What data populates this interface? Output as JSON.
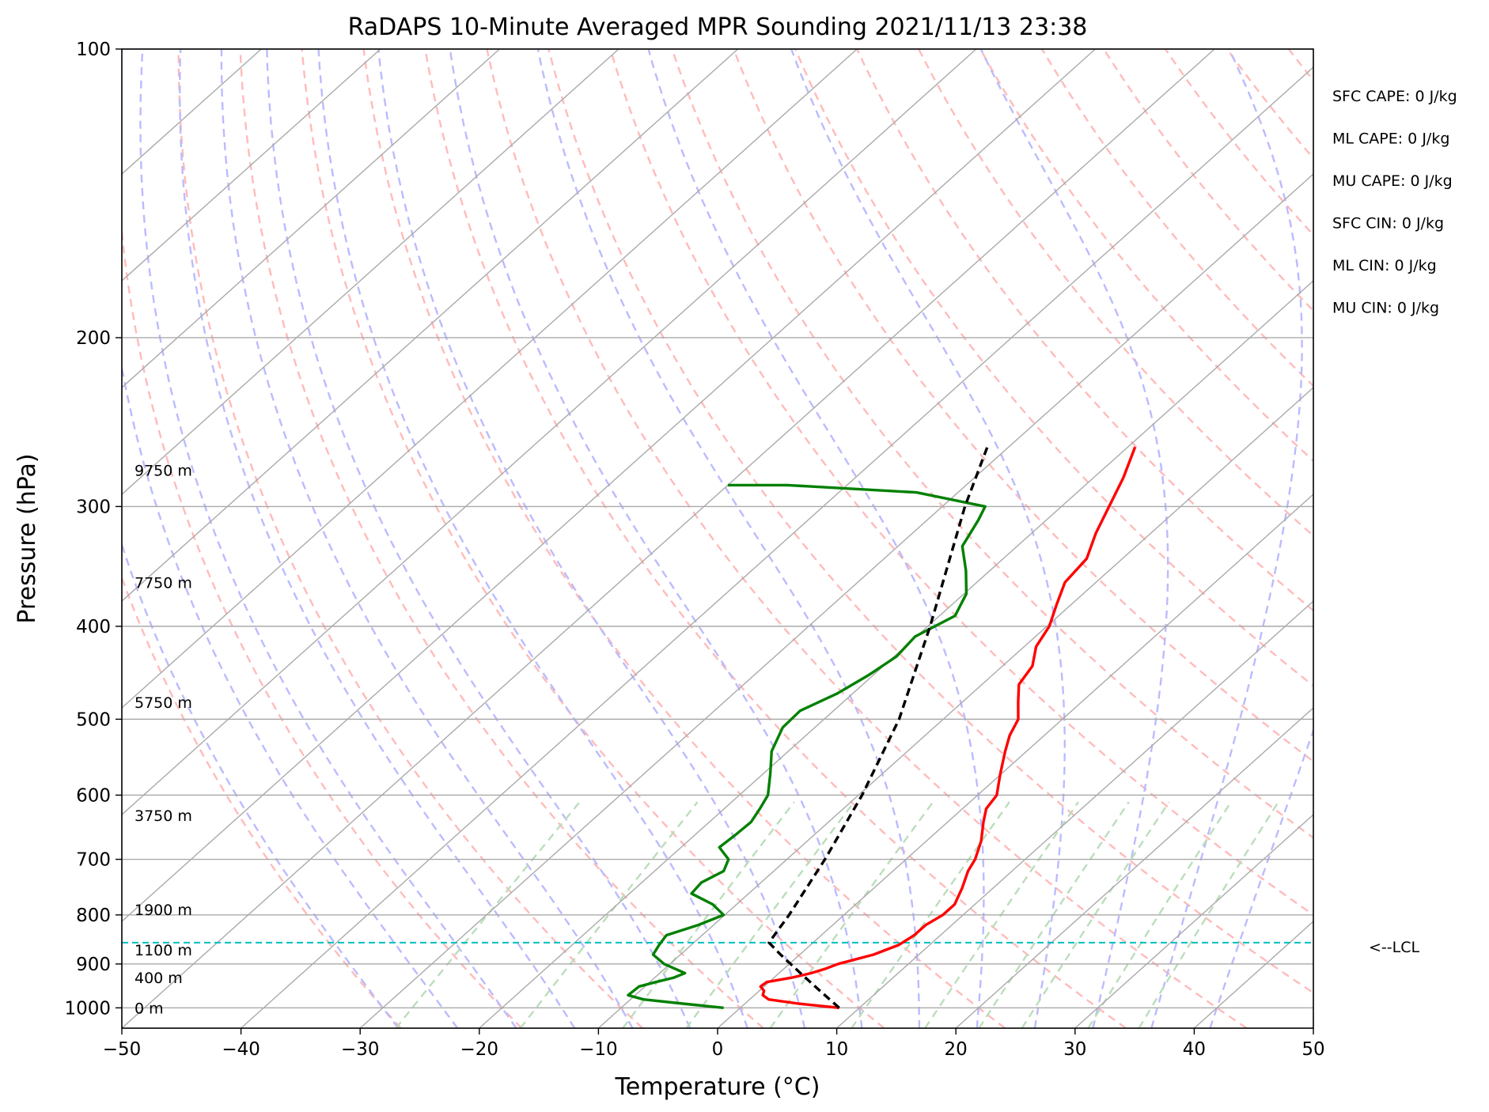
{
  "title": "RaDAPS 10-Minute Averaged MPR Sounding 2021/11/13 23:38",
  "chart_data": {
    "type": "line",
    "subtype": "skew-T log-P diagram",
    "title": "RaDAPS 10-Minute Averaged MPR Sounding 2021/11/13 23:38",
    "xlabel": "Temperature (°C)",
    "ylabel": "Pressure (hPa)",
    "xlim": [
      -50,
      50
    ],
    "ylim": [
      1050,
      100
    ],
    "y_scale": "log",
    "x_ticks": [
      -50,
      -40,
      -30,
      -20,
      -10,
      0,
      10,
      20,
      30,
      40,
      50
    ],
    "x_tick_labels": [
      "−50",
      "−40",
      "−30",
      "−20",
      "−10",
      "0",
      "10",
      "20",
      "30",
      "40",
      "50"
    ],
    "y_ticks": [
      1000,
      900,
      800,
      700,
      600,
      500,
      400,
      300,
      200,
      100
    ],
    "y_tick_labels": [
      "1000",
      "900",
      "800",
      "700",
      "600",
      "500",
      "400",
      "300",
      "200",
      "100"
    ],
    "grid": true,
    "series": [
      {
        "role": "temperature",
        "color": "#ff0000",
        "points": [
          [
            1000,
            8.3
          ],
          [
            990,
            4.5
          ],
          [
            980,
            1.6
          ],
          [
            970,
            0.7
          ],
          [
            960,
            0.4
          ],
          [
            950,
            -0.3
          ],
          [
            940,
            -0.2
          ],
          [
            930,
            1.5
          ],
          [
            920,
            2.7
          ],
          [
            910,
            3.5
          ],
          [
            900,
            4.1
          ],
          [
            880,
            6.2
          ],
          [
            860,
            7.4
          ],
          [
            840,
            7.8
          ],
          [
            820,
            7.8
          ],
          [
            800,
            8.3
          ],
          [
            780,
            8.3
          ],
          [
            750,
            7.4
          ],
          [
            720,
            6.3
          ],
          [
            700,
            5.8
          ],
          [
            670,
            4.6
          ],
          [
            640,
            3.0
          ],
          [
            620,
            2.0
          ],
          [
            600,
            1.6
          ],
          [
            570,
            -0.1
          ],
          [
            540,
            -1.8
          ],
          [
            520,
            -2.9
          ],
          [
            500,
            -3.7
          ],
          [
            480,
            -5.3
          ],
          [
            460,
            -6.9
          ],
          [
            440,
            -7.5
          ],
          [
            420,
            -9.0
          ],
          [
            400,
            -9.8
          ],
          [
            380,
            -11.2
          ],
          [
            360,
            -12.6
          ],
          [
            340,
            -13.0
          ],
          [
            320,
            -14.6
          ],
          [
            300,
            -16.0
          ],
          [
            280,
            -17.5
          ],
          [
            260,
            -19.4
          ]
        ]
      },
      {
        "role": "dewpoint",
        "color": "#008000",
        "points": [
          [
            1000,
            -1.4
          ],
          [
            990,
            -5.2
          ],
          [
            980,
            -8.9
          ],
          [
            970,
            -10.6
          ],
          [
            950,
            -10.5
          ],
          [
            940,
            -9.5
          ],
          [
            930,
            -8.4
          ],
          [
            920,
            -7.9
          ],
          [
            900,
            -10.5
          ],
          [
            880,
            -12.3
          ],
          [
            860,
            -12.7
          ],
          [
            840,
            -13.0
          ],
          [
            820,
            -11.3
          ],
          [
            800,
            -10.1
          ],
          [
            780,
            -12.0
          ],
          [
            760,
            -14.8
          ],
          [
            740,
            -15.0
          ],
          [
            720,
            -14.2
          ],
          [
            700,
            -14.9
          ],
          [
            680,
            -16.8
          ],
          [
            660,
            -16.6
          ],
          [
            640,
            -16.5
          ],
          [
            620,
            -17.0
          ],
          [
            600,
            -17.6
          ],
          [
            570,
            -19.4
          ],
          [
            540,
            -21.4
          ],
          [
            510,
            -22.7
          ],
          [
            490,
            -22.8
          ],
          [
            470,
            -21.3
          ],
          [
            450,
            -20.4
          ],
          [
            430,
            -19.8
          ],
          [
            410,
            -20.1
          ],
          [
            390,
            -18.7
          ],
          [
            370,
            -19.8
          ],
          [
            350,
            -22.0
          ],
          [
            330,
            -24.6
          ],
          [
            310,
            -25.7
          ],
          [
            300,
            -26.4
          ],
          [
            290,
            -33.5
          ],
          [
            285,
            -45.0
          ],
          [
            285,
            -50.0
          ]
        ]
      },
      {
        "role": "parcel profile",
        "color": "#000000",
        "style": "dashed",
        "points": [
          [
            1000,
            8.3
          ],
          [
            960,
            5.1
          ],
          [
            920,
            1.8
          ],
          [
            880,
            -1.6
          ],
          [
            855,
            -3.7
          ],
          [
            800,
            -4.6
          ],
          [
            700,
            -6.8
          ],
          [
            600,
            -9.7
          ],
          [
            500,
            -13.7
          ],
          [
            400,
            -19.8
          ],
          [
            300,
            -28.1
          ],
          [
            258,
            -32.0
          ]
        ]
      }
    ],
    "lcl_pressure_hpa": 855,
    "lcl_label": "<--LCL",
    "height_labels": [
      {
        "pressure_hpa": 1000,
        "text": "0 m"
      },
      {
        "pressure_hpa": 930,
        "text": "400 m"
      },
      {
        "pressure_hpa": 870,
        "text": "1100 m"
      },
      {
        "pressure_hpa": 790,
        "text": "1900 m"
      },
      {
        "pressure_hpa": 630,
        "text": "3750 m"
      },
      {
        "pressure_hpa": 480,
        "text": "5750 m"
      },
      {
        "pressure_hpa": 360,
        "text": "7750 m"
      },
      {
        "pressure_hpa": 275,
        "text": "9750 m"
      }
    ],
    "background_lines": {
      "isotherms": {
        "color": "#aaaaaa",
        "style": "solid"
      },
      "dry_adiabats": {
        "color": "#ffbbbb",
        "style": "dashed"
      },
      "moist_adiabats": {
        "color": "#bbbbff",
        "style": "dashed"
      },
      "mixing_ratio": {
        "color": "#bbddbb",
        "style": "dashed"
      },
      "lcl_line": {
        "color": "#00bfbf",
        "style": "dashed"
      }
    },
    "annotations": [
      "SFC CAPE: 0 J/kg",
      "ML CAPE: 0 J/kg",
      "MU CAPE: 0 J/kg",
      "SFC CIN: 0 J/kg",
      "ML CIN: 0 J/kg",
      "MU CIN: 0 J/kg"
    ]
  }
}
